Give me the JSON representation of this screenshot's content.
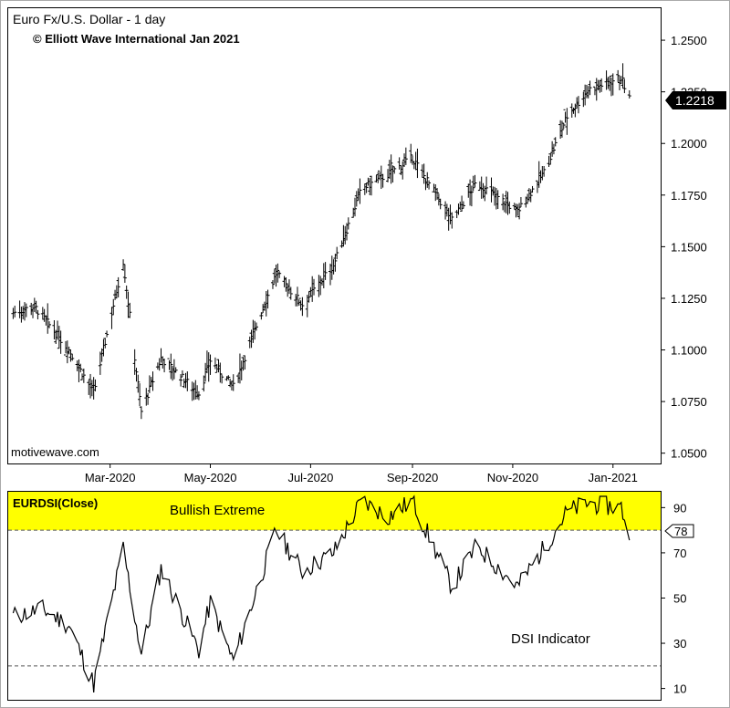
{
  "chart_data": [
    {
      "type": "ohlc",
      "title": "Euro Fx/U.S. Dollar - 1 day",
      "subtitle": "© Elliott Wave International Jan 2021",
      "watermark": "motivewave.com",
      "y_ticks": [
        "1.2500",
        "1.2250",
        "1.2000",
        "1.1750",
        "1.1500",
        "1.1250",
        "1.1000",
        "1.0750",
        "1.0500"
      ],
      "ylim": [
        1.045,
        1.2655
      ],
      "x_ticks": [
        "Mar-2020",
        "May-2020",
        "Jul-2020",
        "Sep-2020",
        "Nov-2020",
        "Jan-2021"
      ],
      "last_price": "1.2218",
      "bar_color": "#000000",
      "key_closes": [
        {
          "date": "2020-01-02",
          "close": 1.118
        },
        {
          "date": "2020-01-15",
          "close": 1.121
        },
        {
          "date": "2020-02-05",
          "close": 1.1
        },
        {
          "date": "2020-02-20",
          "close": 1.079
        },
        {
          "date": "2020-03-09",
          "close": 1.143
        },
        {
          "date": "2020-03-20",
          "close": 1.07
        },
        {
          "date": "2020-04-01",
          "close": 1.096
        },
        {
          "date": "2020-04-24",
          "close": 1.079
        },
        {
          "date": "2020-05-01",
          "close": 1.095
        },
        {
          "date": "2020-05-15",
          "close": 1.082
        },
        {
          "date": "2020-06-10",
          "close": 1.137
        },
        {
          "date": "2020-06-26",
          "close": 1.122
        },
        {
          "date": "2020-07-15",
          "close": 1.141
        },
        {
          "date": "2020-08-01",
          "close": 1.178
        },
        {
          "date": "2020-08-17",
          "close": 1.185
        },
        {
          "date": "2020-09-01",
          "close": 1.193
        },
        {
          "date": "2020-09-25",
          "close": 1.163
        },
        {
          "date": "2020-10-10",
          "close": 1.181
        },
        {
          "date": "2020-11-04",
          "close": 1.167
        },
        {
          "date": "2020-11-20",
          "close": 1.186
        },
        {
          "date": "2020-12-04",
          "close": 1.213
        },
        {
          "date": "2020-12-17",
          "close": 1.226
        },
        {
          "date": "2021-01-06",
          "close": 1.232
        },
        {
          "date": "2021-01-11",
          "close": 1.2218
        }
      ]
    },
    {
      "type": "line",
      "title": "EURDSI(Close)",
      "zone_label": "Bullish Extreme",
      "indicator_label": "DSI Indicator",
      "y_ticks": [
        "90",
        "70",
        "50",
        "30",
        "10"
      ],
      "ylim": [
        5,
        97
      ],
      "last_value": "78",
      "threshold_lines": [
        80,
        20
      ],
      "extreme_zone": [
        80,
        97
      ],
      "zone_color": "#ffff00",
      "key_values": [
        {
          "date": "2020-01-02",
          "value": 42
        },
        {
          "date": "2020-01-20",
          "value": 45
        },
        {
          "date": "2020-02-05",
          "value": 38
        },
        {
          "date": "2020-02-20",
          "value": 12
        },
        {
          "date": "2020-03-09",
          "value": 72
        },
        {
          "date": "2020-03-20",
          "value": 25
        },
        {
          "date": "2020-04-01",
          "value": 63
        },
        {
          "date": "2020-04-24",
          "value": 27
        },
        {
          "date": "2020-05-01",
          "value": 48
        },
        {
          "date": "2020-05-15",
          "value": 22
        },
        {
          "date": "2020-06-10",
          "value": 80
        },
        {
          "date": "2020-06-26",
          "value": 62
        },
        {
          "date": "2020-07-15",
          "value": 70
        },
        {
          "date": "2020-08-01",
          "value": 93
        },
        {
          "date": "2020-08-17",
          "value": 86
        },
        {
          "date": "2020-09-01",
          "value": 93
        },
        {
          "date": "2020-09-25",
          "value": 55
        },
        {
          "date": "2020-10-10",
          "value": 73
        },
        {
          "date": "2020-11-04",
          "value": 55
        },
        {
          "date": "2020-11-20",
          "value": 72
        },
        {
          "date": "2020-12-04",
          "value": 88
        },
        {
          "date": "2020-12-17",
          "value": 92
        },
        {
          "date": "2021-01-06",
          "value": 90
        },
        {
          "date": "2021-01-11",
          "value": 78
        }
      ]
    }
  ]
}
